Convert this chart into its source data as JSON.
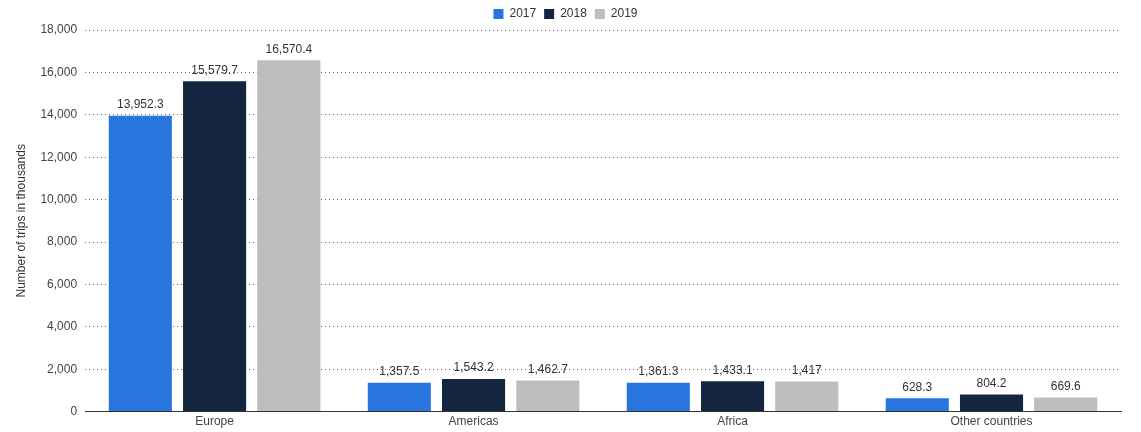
{
  "chart_data": {
    "type": "bar",
    "ylabel": "Number of trips in thousands",
    "categories": [
      "Europe",
      "Americas",
      "Africa",
      "Other countries"
    ],
    "series": [
      {
        "name": "2017",
        "color": "#2876dd",
        "values": [
          13952.3,
          1357.5,
          1361.3,
          628.3
        ],
        "value_labels": [
          "13,952.3",
          "1,357.5",
          "1,361.3",
          "628.3"
        ]
      },
      {
        "name": "2018",
        "color": "#14253f",
        "values": [
          15579.7,
          1543.2,
          1433.1,
          804.2
        ],
        "value_labels": [
          "15,579.7",
          "1,543.2",
          "1,433.1",
          "804.2"
        ]
      },
      {
        "name": "2019",
        "color": "#bdbdbd",
        "values": [
          16570.4,
          1462.7,
          1417,
          669.6
        ],
        "value_labels": [
          "16,570.4",
          "1,462.7",
          "1,417",
          "669.6"
        ]
      }
    ],
    "ylim": [
      0,
      18000
    ],
    "yticks": [
      0,
      {
        "value": 2000,
        "label": "2,000"
      },
      {
        "value": 4000,
        "label": "4,000"
      },
      {
        "value": 6000,
        "label": "6,000"
      },
      {
        "value": 8000,
        "label": "8,000"
      },
      {
        "value": 10000,
        "label": "10,000"
      },
      {
        "value": 12000,
        "label": "12,000"
      },
      {
        "value": 14000,
        "label": "14,000"
      },
      {
        "value": 16000,
        "label": "16,000"
      },
      {
        "value": 18000,
        "label": "18,000"
      }
    ],
    "grid": "y",
    "legend": "top"
  }
}
